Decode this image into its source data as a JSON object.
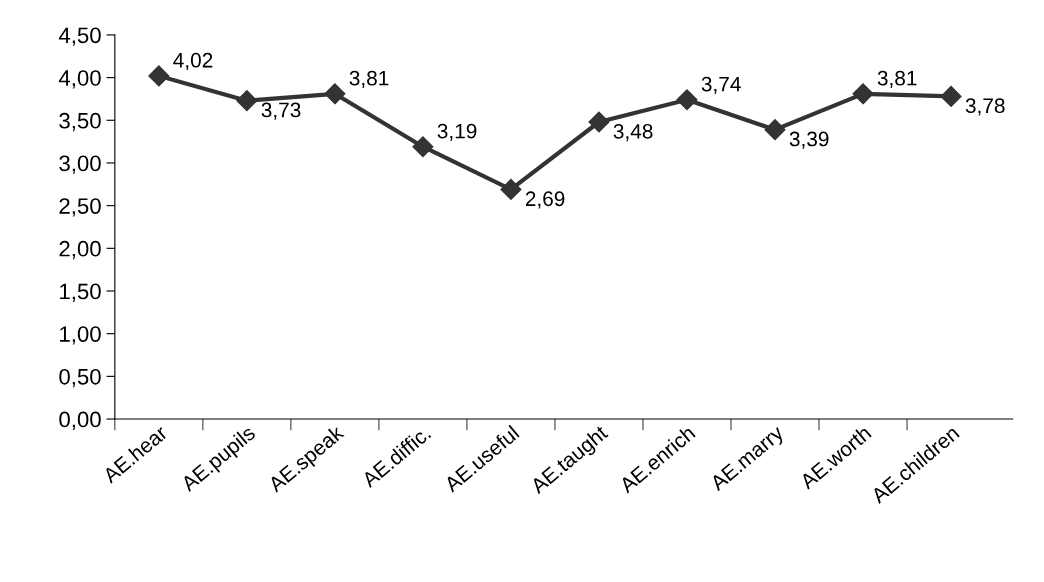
{
  "chart_data": {
    "type": "line",
    "categories": [
      "AE.hear",
      "AE.pupils",
      "AE.speak",
      "AE.diffic.",
      "AE.useful",
      "AE.taught",
      "AE.enrich",
      "AE.marry",
      "AE.worth",
      "AE.children"
    ],
    "values": [
      4.02,
      3.73,
      3.81,
      3.19,
      2.69,
      3.48,
      3.74,
      3.39,
      3.81,
      3.78
    ],
    "value_labels": [
      "4,02",
      "3,73",
      "3,81",
      "3,19",
      "2,69",
      "3,48",
      "3,74",
      "3,39",
      "3,81",
      "3,78"
    ],
    "color": "#333333",
    "marker": "diamond",
    "line_style": "solid",
    "ylim": [
      0,
      4.5
    ],
    "yticks": [
      {
        "value": 0,
        "label": "0,00"
      },
      {
        "value": 0.5,
        "label": "0,50"
      },
      {
        "value": 1,
        "label": "1,00"
      },
      {
        "value": 1.5,
        "label": "1,50"
      },
      {
        "value": 2,
        "label": "2,00"
      },
      {
        "value": 2.5,
        "label": "2,50"
      },
      {
        "value": 3,
        "label": "3,00"
      },
      {
        "value": 3.5,
        "label": "3,50"
      },
      {
        "value": 4,
        "label": "4,00"
      },
      {
        "value": 4.5,
        "label": "4,50"
      }
    ],
    "grid": false,
    "legend": false
  }
}
